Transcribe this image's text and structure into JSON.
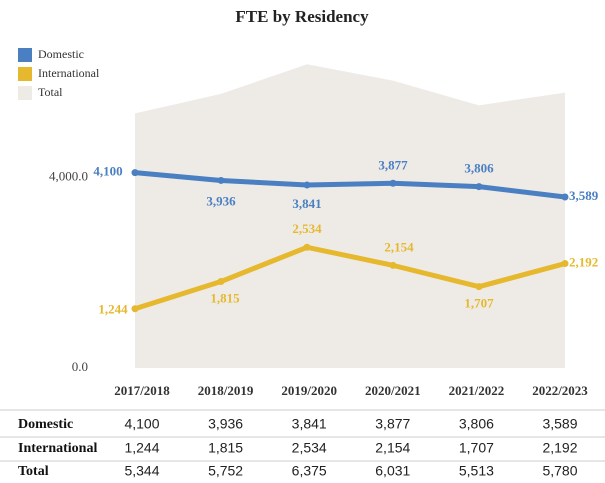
{
  "chart_data": {
    "type": "line",
    "title": "FTE by Residency",
    "categories": [
      "2017/2018",
      "2018/2019",
      "2019/2020",
      "2020/2021",
      "2021/2022",
      "2022/2023"
    ],
    "series": [
      {
        "name": "Domestic",
        "color": "#4a7fc1",
        "values": [
          4100,
          3936,
          3841,
          3877,
          3806,
          3589
        ],
        "value_labels": [
          "4,100",
          "3,936",
          "3,841",
          "3,877",
          "3,806",
          "3,589"
        ]
      },
      {
        "name": "International",
        "color": "#e6b82e",
        "values": [
          1244,
          1815,
          2534,
          2154,
          1707,
          2192
        ],
        "value_labels": [
          "1,244",
          "1,815",
          "2,534",
          "2,154",
          "1,707",
          "2,192"
        ]
      },
      {
        "name": "Total",
        "color": "#eeebe7",
        "area": true,
        "values": [
          5344,
          5752,
          6375,
          6031,
          5513,
          5780
        ],
        "value_labels": [
          "5,344",
          "5,752",
          "6,375",
          "6,031",
          "5,513",
          "5,780"
        ]
      }
    ],
    "ylim": [
      0,
      6800
    ],
    "yticks": [
      {
        "value": 0,
        "label": "0.0"
      },
      {
        "value": 4000,
        "label": "4,000.0"
      }
    ],
    "legend": "top-left"
  }
}
